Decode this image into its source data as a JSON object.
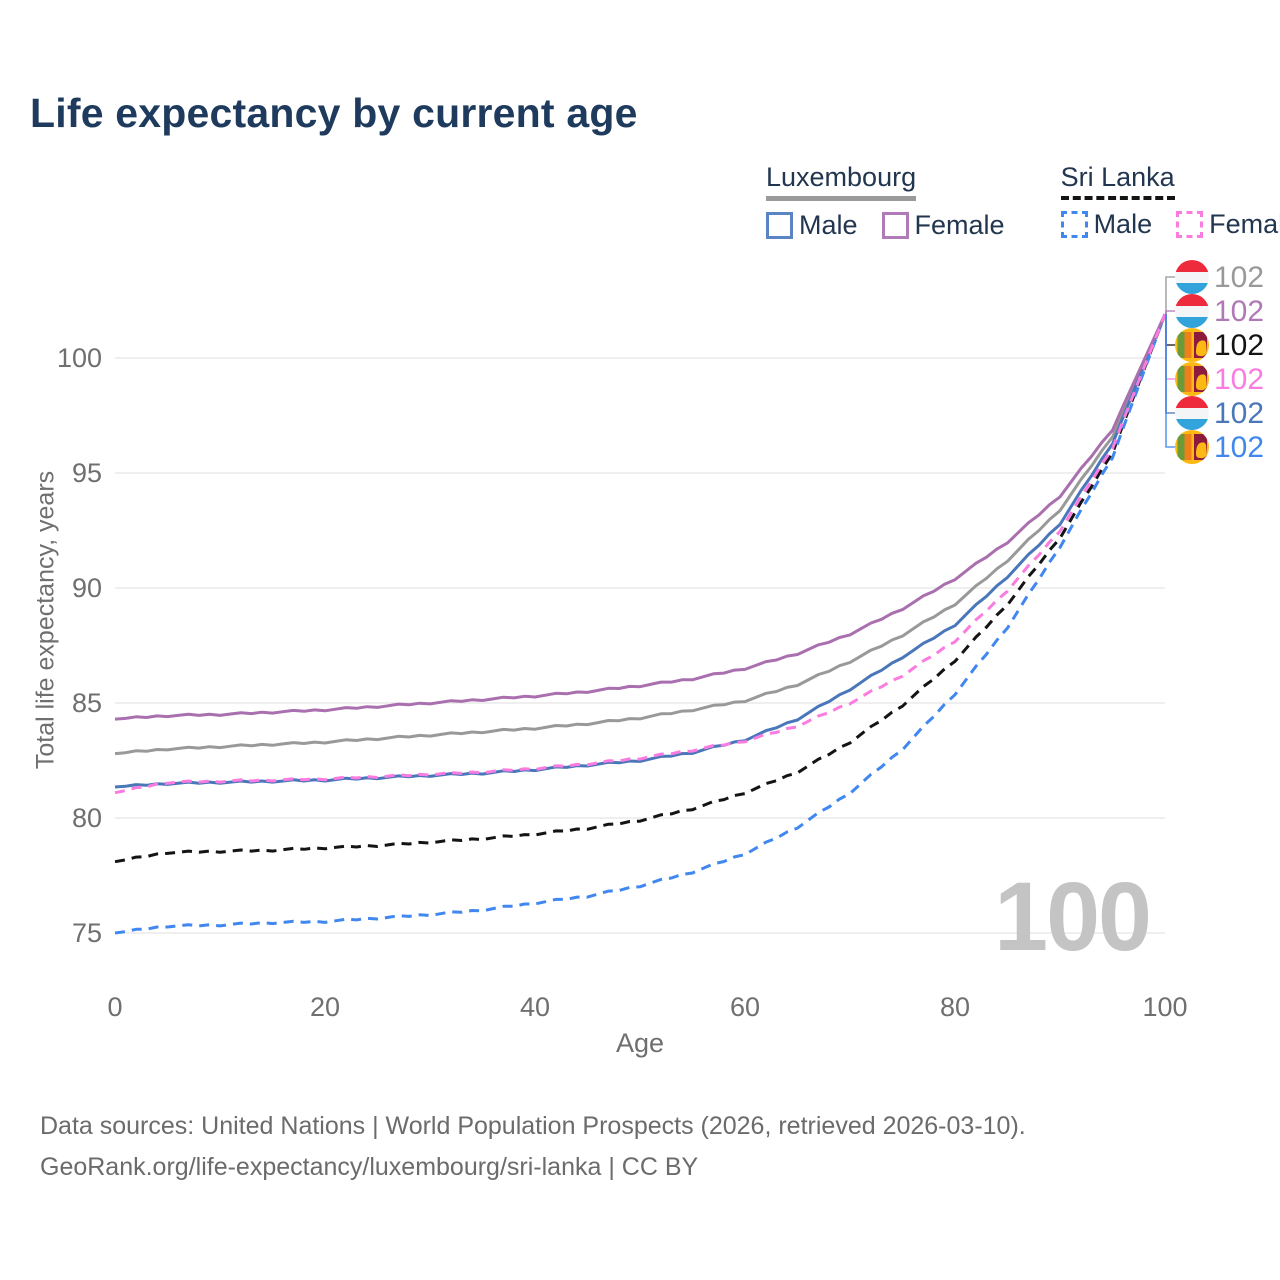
{
  "title": "Life expectancy by current age",
  "legend": {
    "groups": [
      {
        "id": "luxembourg",
        "label": "Luxembourg",
        "line_style": "solid",
        "line_color": "#9a9a9a",
        "items": [
          {
            "label": "Male",
            "color": "#5b84c4",
            "style": "solid"
          },
          {
            "label": "Female",
            "color": "#b07cb8",
            "style": "solid"
          }
        ]
      },
      {
        "id": "sri-lanka",
        "label": "Sri Lanka",
        "line_style": "dashed",
        "line_color": "#141414",
        "items": [
          {
            "label": "Male",
            "color": "#4187f0",
            "style": "dashed"
          },
          {
            "label": "Female",
            "color": "#fb7ce0",
            "style": "dashed"
          }
        ]
      }
    ]
  },
  "chart_data": {
    "type": "line",
    "title": "Life expectancy by current age",
    "xlabel": "Age",
    "ylabel": "Total life expectancy, years",
    "x_ticks": [
      0,
      20,
      40,
      60,
      80,
      100
    ],
    "y_ticks": [
      75,
      80,
      85,
      90,
      95,
      100
    ],
    "xlim": [
      0,
      100
    ],
    "ylim": [
      74.5,
      102.5
    ],
    "grid": "horizontal",
    "x": [
      0,
      5,
      10,
      15,
      20,
      25,
      30,
      35,
      40,
      45,
      50,
      55,
      60,
      65,
      70,
      75,
      80,
      85,
      90,
      95,
      100
    ],
    "series": [
      {
        "id": "luxembourg-total",
        "name": "Luxembourg Total",
        "country": "Luxembourg",
        "color": "#999999",
        "dash": "solid",
        "values": [
          82.8,
          83.0,
          83.1,
          83.2,
          83.3,
          83.45,
          83.6,
          83.75,
          83.9,
          84.1,
          84.35,
          84.7,
          85.1,
          85.8,
          86.8,
          87.95,
          89.3,
          91.2,
          93.4,
          96.6,
          101.9
        ]
      },
      {
        "id": "luxembourg-male",
        "name": "Luxembourg Male",
        "country": "Luxembourg",
        "color": "#4a76ba",
        "dash": "solid",
        "values": [
          81.35,
          81.5,
          81.55,
          81.6,
          81.65,
          81.75,
          81.85,
          81.95,
          82.1,
          82.3,
          82.5,
          82.85,
          83.4,
          84.3,
          85.6,
          87.0,
          88.4,
          90.5,
          92.8,
          96.3,
          101.9
        ]
      },
      {
        "id": "sri-lanka-total",
        "name": "Sri Lanka Total",
        "country": "Sri Lanka",
        "color": "#141414",
        "dash": "dashed",
        "values": [
          78.1,
          78.5,
          78.55,
          78.6,
          78.7,
          78.8,
          78.95,
          79.1,
          79.3,
          79.55,
          79.9,
          80.4,
          81.1,
          82.0,
          83.3,
          84.9,
          86.85,
          89.3,
          92.2,
          95.9,
          101.9
        ]
      },
      {
        "id": "sri-lanka-male",
        "name": "Sri Lanka Male",
        "country": "Sri Lanka",
        "color": "#4187f0",
        "dash": "dashed",
        "values": [
          75.0,
          75.3,
          75.35,
          75.45,
          75.5,
          75.65,
          75.8,
          76.0,
          76.3,
          76.6,
          77.05,
          77.65,
          78.45,
          79.6,
          81.1,
          83.0,
          85.4,
          88.3,
          91.8,
          95.7,
          101.9
        ]
      },
      {
        "id": "luxembourg-female",
        "name": "Luxembourg Female",
        "country": "Luxembourg",
        "color": "#a96fae",
        "dash": "solid",
        "values": [
          84.3,
          84.45,
          84.5,
          84.6,
          84.7,
          84.85,
          85.0,
          85.15,
          85.3,
          85.5,
          85.75,
          86.05,
          86.5,
          87.15,
          88.0,
          89.1,
          90.4,
          92.0,
          94.0,
          96.9,
          101.9
        ]
      },
      {
        "id": "sri-lanka-female",
        "name": "Sri Lanka Female",
        "country": "Sri Lanka",
        "color": "#fb7ce0",
        "dash": "dashed",
        "values": [
          81.1,
          81.55,
          81.6,
          81.65,
          81.7,
          81.8,
          81.9,
          82.0,
          82.15,
          82.35,
          82.6,
          82.95,
          83.35,
          84.0,
          85.0,
          86.2,
          87.7,
          89.9,
          92.5,
          96.1,
          101.9
        ]
      }
    ],
    "end_labels": [
      {
        "series": "luxembourg-total",
        "flag": "luxembourg",
        "value": "102",
        "color": "#999999"
      },
      {
        "series": "luxembourg-female",
        "flag": "luxembourg",
        "value": "102",
        "color": "#b078b5"
      },
      {
        "series": "sri-lanka-total",
        "flag": "sri-lanka",
        "value": "102",
        "color": "#141414"
      },
      {
        "series": "sri-lanka-female",
        "flag": "sri-lanka",
        "value": "102",
        "color": "#fb7ce0"
      },
      {
        "series": "luxembourg-male",
        "flag": "luxembourg",
        "value": "102",
        "color": "#4a76ba"
      },
      {
        "series": "sri-lanka-male",
        "flag": "sri-lanka",
        "value": "102",
        "color": "#4187f0"
      }
    ],
    "watermark": "100",
    "legend_position": "top-right"
  },
  "footer": {
    "line1": "Data sources: United Nations | World Population Prospects (2026, retrieved 2026-03-10).",
    "line2": "GeoRank.org/life-expectancy/luxembourg/sri-lanka | CC BY"
  }
}
